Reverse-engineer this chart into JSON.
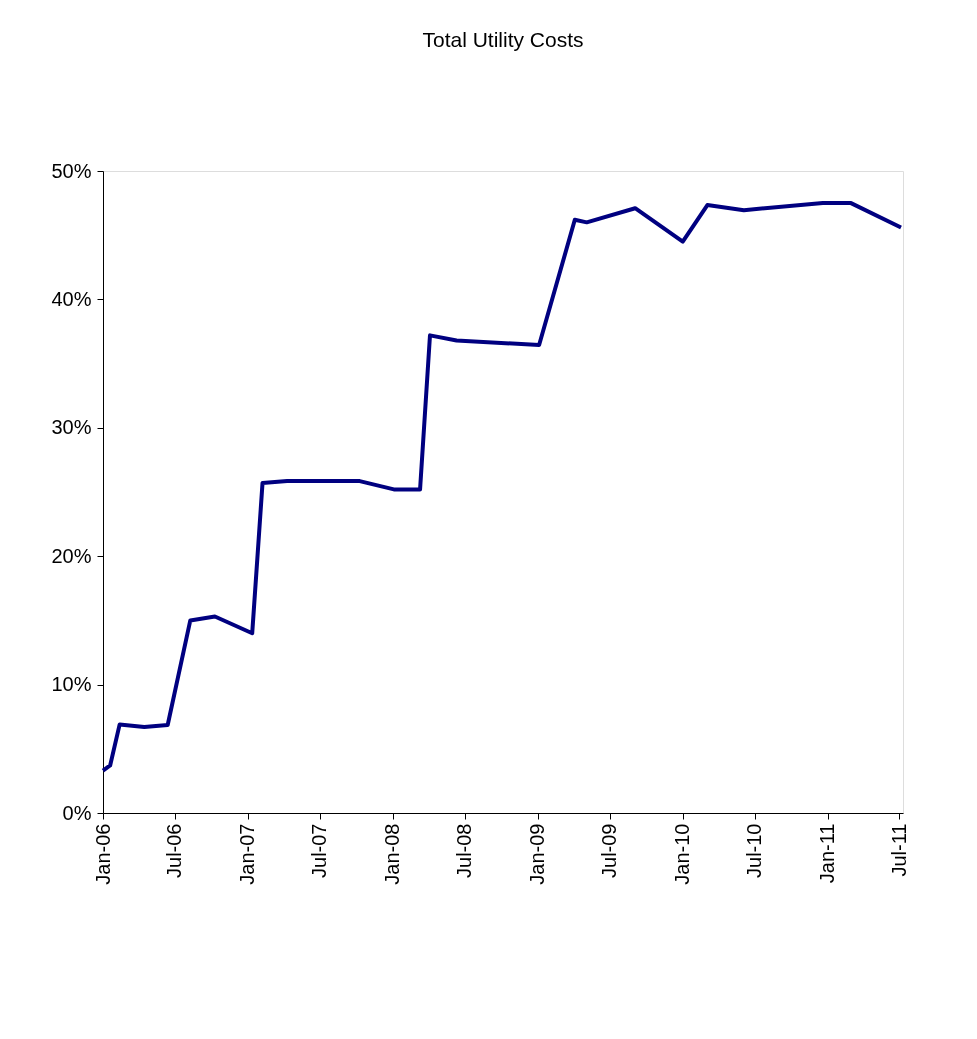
{
  "chart_data": {
    "type": "line",
    "title": "Total Utility Costs",
    "x": [
      "2006-01-01",
      "2006-01-19",
      "2006-02-12",
      "2006-04-15",
      "2006-06-13",
      "2006-08-09",
      "2006-10-10",
      "2007-01-12",
      "2007-02-07",
      "2007-04-10",
      "2007-10-10",
      "2008-01-04",
      "2008-03-10",
      "2008-04-04",
      "2008-06-10",
      "2009-01-04",
      "2009-04-04",
      "2009-05-04",
      "2009-09-03",
      "2010-01-01",
      "2010-03-04",
      "2010-06-04",
      "2010-12-20",
      "2011-03-01",
      "2011-07-05"
    ],
    "series": [
      {
        "color": "#000080",
        "values": [
          3.3,
          3.7,
          6.9,
          6.7,
          6.85,
          15.0,
          15.3,
          14.0,
          25.7,
          25.85,
          25.85,
          25.2,
          25.2,
          37.2,
          36.8,
          36.45,
          46.2,
          46.0,
          47.1,
          44.5,
          47.35,
          46.95,
          47.5,
          47.5,
          45.6
        ]
      }
    ],
    "xlim": [
      "2006-01-01",
      "2011-07-10"
    ],
    "xticks": [
      {
        "value": "2006-01-01",
        "label": "Jan-06"
      },
      {
        "value": "2006-07-01",
        "label": "Jul-06"
      },
      {
        "value": "2007-01-01",
        "label": "Jan-07"
      },
      {
        "value": "2007-07-01",
        "label": "Jul-07"
      },
      {
        "value": "2008-01-01",
        "label": "Jan-08"
      },
      {
        "value": "2008-07-01",
        "label": "Jul-08"
      },
      {
        "value": "2009-01-01",
        "label": "Jan-09"
      },
      {
        "value": "2009-07-01",
        "label": "Jul-09"
      },
      {
        "value": "2010-01-01",
        "label": "Jan-10"
      },
      {
        "value": "2010-07-01",
        "label": "Jul-10"
      },
      {
        "value": "2011-01-01",
        "label": "Jan-11"
      },
      {
        "value": "2011-07-01",
        "label": "Jul-11"
      }
    ],
    "ylim": [
      0,
      50
    ],
    "yticks": [
      {
        "value": 0,
        "label": "0%"
      },
      {
        "value": 10,
        "label": "10%"
      },
      {
        "value": 20,
        "label": "20%"
      },
      {
        "value": 30,
        "label": "30%"
      },
      {
        "value": 40,
        "label": "40%"
      },
      {
        "value": 50,
        "label": "50%"
      }
    ],
    "grid": false,
    "legend": false,
    "marker": "none",
    "line_style": "solid"
  }
}
